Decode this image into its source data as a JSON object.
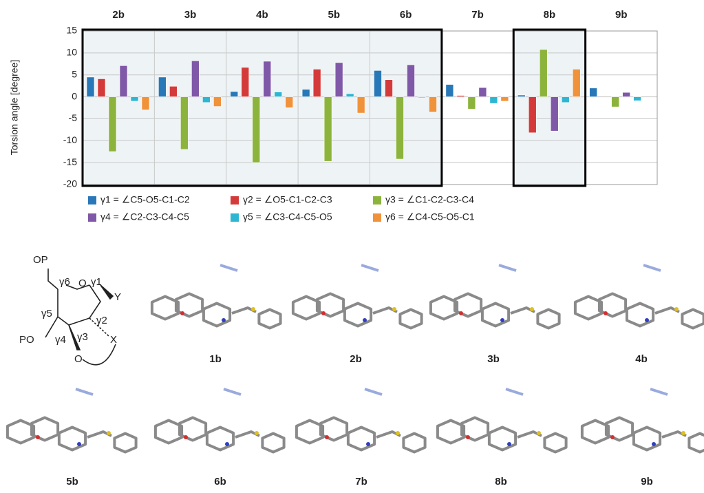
{
  "chart_data": {
    "type": "bar",
    "y_label": "Torsion angle [degree]",
    "categories": [
      "2b",
      "3b",
      "4b",
      "5b",
      "6b",
      "7b",
      "8b",
      "9b"
    ],
    "series": [
      {
        "name": "γ1 = ∠C5-O5-C1-C2",
        "color": "#2878b8",
        "values": [
          4.5,
          4.5,
          1.2,
          1.7,
          6.0,
          2.8,
          0.4,
          2.0
        ]
      },
      {
        "name": "γ2 = ∠O5-C1-C2-C3",
        "color": "#d43a3a",
        "values": [
          4.1,
          2.4,
          6.7,
          6.3,
          3.9,
          0.3,
          -8.2,
          0
        ]
      },
      {
        "name": "γ3 = ∠C1-C2-C3-C4",
        "color": "#8cb43c",
        "values": [
          -12.5,
          -12.0,
          -15.0,
          -14.7,
          -14.2,
          -2.8,
          10.8,
          -2.3
        ]
      },
      {
        "name": "γ4 = ∠C2-C3-C4-C5",
        "color": "#8058a8",
        "values": [
          7.1,
          8.2,
          8.1,
          7.8,
          7.3,
          2.1,
          -7.8,
          1.0
        ]
      },
      {
        "name": "γ5 = ∠C3-C4-C5-O5",
        "color": "#2cb6d2",
        "values": [
          -1.0,
          -1.3,
          1.1,
          0.7,
          -0.2,
          -1.5,
          -1.3,
          -0.9
        ]
      },
      {
        "name": "γ6 = ∠C4-C5-O5-C1",
        "color": "#f0923a",
        "values": [
          -3.0,
          -2.2,
          -2.5,
          -3.7,
          -3.5,
          -1.0,
          6.3,
          0
        ]
      }
    ],
    "ylim": [
      -20,
      15
    ],
    "yticks": [
      -20,
      -15,
      -10,
      -5,
      0,
      5,
      10,
      15
    ],
    "grid": true
  },
  "figure": {
    "scheme": {
      "op": "OP",
      "po": "PO",
      "ring_o": "O",
      "bridge_o": "O",
      "x": "X",
      "y": "Y",
      "g1": "γ1",
      "g2": "γ2",
      "g3": "γ3",
      "g4": "γ4",
      "g5": "γ5",
      "g6": "γ6"
    },
    "structures": [
      "1b",
      "2b",
      "3b",
      "4b",
      "5b",
      "6b",
      "7b",
      "8b",
      "9b"
    ]
  }
}
